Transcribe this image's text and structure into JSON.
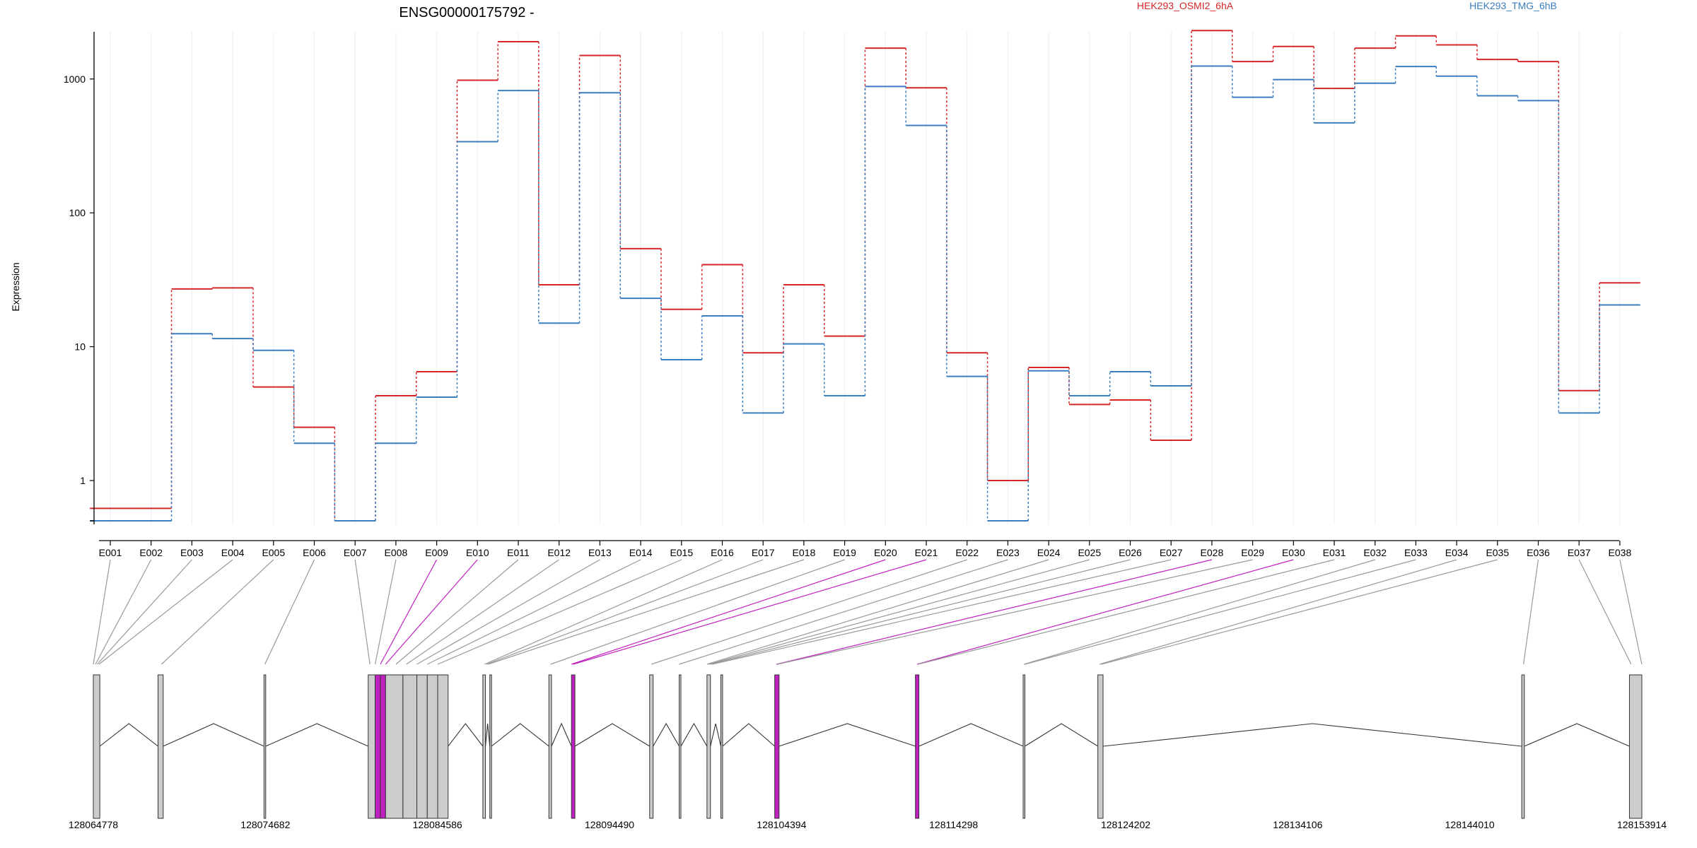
{
  "chart_data": {
    "type": "line",
    "title": "ENSG00000175792 -",
    "ylabel": "Expression",
    "y_scale": "log",
    "ylim": [
      0.5,
      3000
    ],
    "y_ticks": [
      1,
      10,
      100,
      1000
    ],
    "y_tick_labels": [
      "1",
      "10",
      "100",
      "1000"
    ],
    "legend_placement": "top",
    "grid": "vertical",
    "categories": [
      "E001",
      "E002",
      "E003",
      "E004",
      "E005",
      "E006",
      "E007",
      "E008",
      "E009",
      "E010",
      "E011",
      "E012",
      "E013",
      "E014",
      "E015",
      "E016",
      "E017",
      "E018",
      "E019",
      "E020",
      "E021",
      "E022",
      "E023",
      "E024",
      "E025",
      "E026",
      "E027",
      "E028",
      "E029",
      "E030",
      "E031",
      "E032",
      "E033",
      "E034",
      "E035",
      "E036",
      "E037",
      "E038"
    ],
    "series": [
      {
        "name": "HEK293_OSMI2_6hA",
        "color": "#d62728",
        "values": [
          0.62,
          0.62,
          27,
          27.5,
          5,
          2.5,
          0.5,
          4.3,
          6.5,
          980,
          1900,
          29,
          1500,
          54,
          19,
          41,
          9,
          29,
          12,
          1700,
          860,
          9,
          1,
          7,
          3.7,
          4,
          2,
          2300,
          1350,
          1750,
          850,
          1700,
          2100,
          1800,
          1400,
          1350,
          4.7,
          30
        ]
      },
      {
        "name": "HEK293_TMG_6hB",
        "color": "#3b7ebf",
        "values": [
          0.5,
          0.5,
          12.5,
          11.5,
          9.4,
          1.9,
          0.5,
          1.9,
          4.2,
          340,
          820,
          15,
          790,
          23,
          8,
          17,
          3.2,
          10.5,
          4.3,
          880,
          450,
          6,
          0.5,
          6.6,
          4.3,
          6.5,
          5.1,
          1250,
          730,
          990,
          470,
          930,
          1240,
          1050,
          750,
          690,
          3.2,
          20.5
        ]
      }
    ],
    "gene_model": {
      "coordinate_labels": [
        "128064778",
        "128074682",
        "128084586",
        "128094490",
        "128104394",
        "128114298",
        "128124202",
        "128134106",
        "128144010",
        "128153914"
      ],
      "coord_start": 128064778,
      "coord_end": 128153914,
      "highlight_color": "#c020c0",
      "exon_fill": "#cccccc",
      "exons": [
        {
          "start": 128064778,
          "end": 128065150,
          "highlight": false
        },
        {
          "start": 128068500,
          "end": 128068800,
          "highlight": false
        },
        {
          "start": 128074600,
          "end": 128074700,
          "highlight": false
        },
        {
          "start": 128080600,
          "end": 128081000,
          "highlight": false
        },
        {
          "start": 128081000,
          "end": 128081300,
          "highlight": true
        },
        {
          "start": 128081300,
          "end": 128081600,
          "highlight": true
        },
        {
          "start": 128081600,
          "end": 128082600,
          "highlight": false
        },
        {
          "start": 128082600,
          "end": 128083400,
          "highlight": false
        },
        {
          "start": 128083400,
          "end": 128084000,
          "highlight": false
        },
        {
          "start": 128084000,
          "end": 128084600,
          "highlight": false
        },
        {
          "start": 128084600,
          "end": 128085200,
          "highlight": false
        },
        {
          "start": 128087200,
          "end": 128087350,
          "highlight": false
        },
        {
          "start": 128087600,
          "end": 128087700,
          "highlight": false
        },
        {
          "start": 128091000,
          "end": 128091150,
          "highlight": false
        },
        {
          "start": 128092300,
          "end": 128092500,
          "highlight": true
        },
        {
          "start": 128096800,
          "end": 128097000,
          "highlight": false
        },
        {
          "start": 128098500,
          "end": 128098600,
          "highlight": false
        },
        {
          "start": 128100100,
          "end": 128100300,
          "highlight": false
        },
        {
          "start": 128100900,
          "end": 128101000,
          "highlight": false
        },
        {
          "start": 128104000,
          "end": 128104250,
          "highlight": true
        },
        {
          "start": 128112100,
          "end": 128112300,
          "highlight": true
        },
        {
          "start": 128118300,
          "end": 128118400,
          "highlight": false
        },
        {
          "start": 128122600,
          "end": 128122900,
          "highlight": false
        },
        {
          "start": 128147000,
          "end": 128147150,
          "highlight": false
        },
        {
          "start": 128153200,
          "end": 128153914,
          "highlight": false
        }
      ],
      "bin_connectors": [
        {
          "start": 128064778,
          "highlight": false
        },
        {
          "start": 128064900,
          "highlight": false
        },
        {
          "start": 128065000,
          "highlight": false
        },
        {
          "start": 128065100,
          "highlight": false
        },
        {
          "start": 128068700,
          "highlight": false
        },
        {
          "start": 128074650,
          "highlight": false
        },
        {
          "start": 128080700,
          "highlight": false
        },
        {
          "start": 128081000,
          "highlight": false
        },
        {
          "start": 128081300,
          "highlight": true
        },
        {
          "start": 128081600,
          "highlight": true
        },
        {
          "start": 128082200,
          "highlight": false
        },
        {
          "start": 128082800,
          "highlight": false
        },
        {
          "start": 128083400,
          "highlight": false
        },
        {
          "start": 128084000,
          "highlight": false
        },
        {
          "start": 128084600,
          "highlight": false
        },
        {
          "start": 128087300,
          "highlight": false
        },
        {
          "start": 128087400,
          "highlight": false
        },
        {
          "start": 128087500,
          "highlight": false
        },
        {
          "start": 128091100,
          "highlight": false
        },
        {
          "start": 128092300,
          "highlight": true
        },
        {
          "start": 128092400,
          "highlight": true
        },
        {
          "start": 128096900,
          "highlight": false
        },
        {
          "start": 128098500,
          "highlight": false
        },
        {
          "start": 128100100,
          "highlight": false
        },
        {
          "start": 128100200,
          "highlight": false
        },
        {
          "start": 128100300,
          "highlight": false
        },
        {
          "start": 128100400,
          "highlight": false
        },
        {
          "start": 128104100,
          "highlight": true
        },
        {
          "start": 128104150,
          "highlight": false
        },
        {
          "start": 128112200,
          "highlight": true
        },
        {
          "start": 128112250,
          "highlight": false
        },
        {
          "start": 128118350,
          "highlight": false
        },
        {
          "start": 128118400,
          "highlight": false
        },
        {
          "start": 128122700,
          "highlight": false
        },
        {
          "start": 128122800,
          "highlight": false
        },
        {
          "start": 128147100,
          "highlight": false
        },
        {
          "start": 128153300,
          "highlight": false
        },
        {
          "start": 128153914,
          "highlight": false
        }
      ]
    }
  }
}
